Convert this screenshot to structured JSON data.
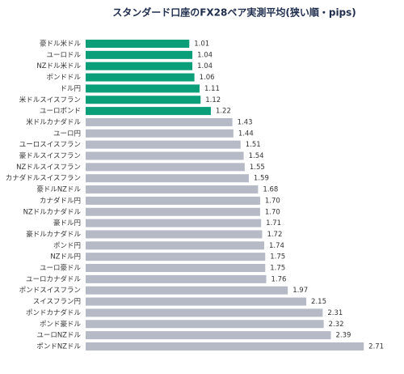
{
  "chart_data": {
    "type": "barh",
    "title": "スタンダード口座のFX28ペア実測平均(狭い順・pips)",
    "categories": [
      "豪ドル米ドル",
      "ユーロドル",
      "NZドル米ドル",
      "ポンドドル",
      "ドル円",
      "米ドルスイスフラン",
      "ユーロポンド",
      "米ドルカナダドル",
      "ユーロ円",
      "ユーロスイスフラン",
      "豪ドルスイスフラン",
      "NZドルスイスフラン",
      "カナダドルスイスフラン",
      "豪ドルNZドル",
      "カナダドル円",
      "NZドルカナダドル",
      "豪ドル円",
      "豪ドルカナダドル",
      "ポンド円",
      "NZドル円",
      "ユーロ豪ドル",
      "ユーロカナダドル",
      "ポンドスイスフラン",
      "スイスフラン円",
      "ポンドカナダドル",
      "ポンド豪ドル",
      "ユーロNZドル",
      "ポンドNZドル"
    ],
    "values": [
      1.01,
      1.04,
      1.04,
      1.06,
      1.11,
      1.12,
      1.22,
      1.43,
      1.44,
      1.51,
      1.54,
      1.55,
      1.59,
      1.68,
      1.7,
      1.7,
      1.71,
      1.72,
      1.74,
      1.75,
      1.75,
      1.76,
      1.97,
      2.15,
      2.31,
      2.32,
      2.39,
      2.71
    ],
    "value_labels": [
      "1.01",
      "1.04",
      "1.04",
      "1.06",
      "1.11",
      "1.12",
      "1.22",
      "1.43",
      "1.44",
      "1.51",
      "1.54",
      "1.55",
      "1.59",
      "1.68",
      "1.70",
      "1.70",
      "1.71",
      "1.72",
      "1.74",
      "1.75",
      "1.75",
      "1.76",
      "1.97",
      "2.15",
      "2.31",
      "2.32",
      "2.39",
      "2.71"
    ],
    "colors": [
      "#0a9e79",
      "#0a9e79",
      "#0a9e79",
      "#0a9e79",
      "#0a9e79",
      "#0a9e79",
      "#0a9e79",
      "#b5bac6",
      "#b5bac6",
      "#b5bac6",
      "#b5bac6",
      "#b5bac6",
      "#b5bac6",
      "#b5bac6",
      "#b5bac6",
      "#b5bac6",
      "#b5bac6",
      "#b5bac6",
      "#b5bac6",
      "#b5bac6",
      "#b5bac6",
      "#b5bac6",
      "#b5bac6",
      "#b5bac6",
      "#b5bac6",
      "#b5bac6",
      "#b5bac6",
      "#b5bac6"
    ],
    "xlim": [
      0,
      3
    ]
  }
}
